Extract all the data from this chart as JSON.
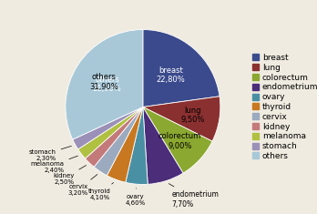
{
  "labels": [
    "breast",
    "lung",
    "colorectum",
    "endometrium",
    "ovary",
    "thyroid",
    "cervix",
    "kidney",
    "melanoma",
    "stomach",
    "others"
  ],
  "values": [
    22.8,
    9.5,
    9.0,
    7.7,
    4.6,
    4.1,
    3.2,
    2.5,
    2.4,
    2.3,
    31.9
  ],
  "colors": [
    "#3B4A8C",
    "#8B3030",
    "#8BA830",
    "#4B2D7A",
    "#4A90A4",
    "#C87820",
    "#9BAABF",
    "#C47A7A",
    "#B0C040",
    "#9B90B8",
    "#A8C8D8"
  ],
  "label_texts": [
    "breast\n22,80%",
    "lung\n9,50%",
    "colorectum\n9,00%",
    "endometrium\n7,70%",
    "ovary\n4,60%",
    "thyroid\n4,10%",
    "cervix\n3,20%",
    "kidney\n2,50%",
    "melanoma\n2,40%",
    "stomach\n2,30%",
    "others\n31,90%"
  ],
  "legend_labels": [
    "breast",
    "lung",
    "colorectum",
    "endometrium",
    "ovary",
    "thyroid",
    "cervix",
    "kidney",
    "melanoma",
    "stomach",
    "others"
  ],
  "background_color": "#F0EBE0",
  "fontsize_wedge": 6.0,
  "fontsize_legend": 6.5
}
